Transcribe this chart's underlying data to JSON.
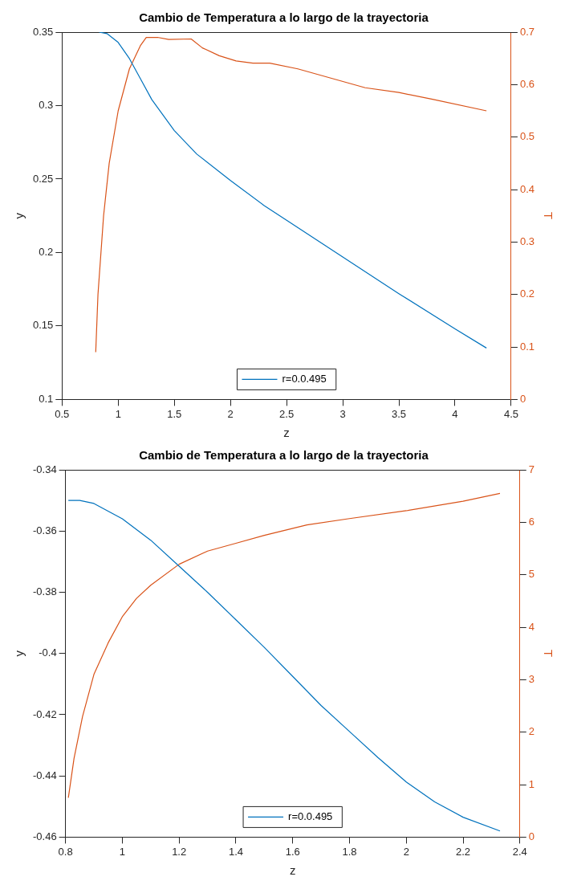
{
  "chart_data": [
    {
      "type": "line",
      "title": "Cambio de Temperatura a lo largo de la trayectoria",
      "xlabel": "z",
      "ylabel": "y",
      "y2label": "T",
      "xlim": [
        0.5,
        4.5
      ],
      "xticks": [
        0.5,
        1,
        1.5,
        2,
        2.5,
        3,
        3.5,
        4,
        4.5
      ],
      "ylim": [
        0.1,
        0.35
      ],
      "yticks": [
        0.1,
        0.15,
        0.2,
        0.25,
        0.3,
        0.35
      ],
      "y2lim": [
        0,
        0.7
      ],
      "y2ticks": [
        0,
        0.1,
        0.2,
        0.3,
        0.4,
        0.5,
        0.6,
        0.7
      ],
      "grid": false,
      "legend": "bottom",
      "series": [
        {
          "name": "r=0.0.495",
          "color": "#0072bd",
          "x": [
            0.83,
            0.9,
            1.0,
            1.1,
            1.2,
            1.3,
            1.5,
            1.7,
            2.0,
            2.3,
            2.5,
            3.0,
            3.5,
            4.0,
            4.28
          ],
          "values": [
            0.35,
            0.349,
            0.343,
            0.332,
            0.318,
            0.304,
            0.283,
            0.267,
            0.249,
            0.232,
            0.222,
            0.197,
            0.172,
            0.148,
            0.135
          ]
        },
        {
          "color": "#d95319",
          "axis": "y2",
          "x": [
            0.8,
            0.82,
            0.87,
            0.92,
            1.0,
            1.1,
            1.2,
            1.25,
            1.35,
            1.45,
            1.65,
            1.75,
            1.9,
            2.05,
            2.2,
            2.35,
            2.6,
            2.9,
            3.2,
            3.5,
            3.8,
            4.28
          ],
          "values": [
            0.09,
            0.2,
            0.35,
            0.45,
            0.55,
            0.63,
            0.675,
            0.69,
            0.69,
            0.686,
            0.687,
            0.67,
            0.655,
            0.645,
            0.641,
            0.641,
            0.63,
            0.612,
            0.594,
            0.585,
            0.572,
            0.55
          ]
        }
      ]
    },
    {
      "type": "line",
      "title": "Cambio de Temperatura a lo largo de la trayectoria",
      "xlabel": "z",
      "ylabel": "y",
      "y2label": "T",
      "xlim": [
        0.8,
        2.4
      ],
      "xticks": [
        0.8,
        1,
        1.2,
        1.4,
        1.6,
        1.8,
        2,
        2.2,
        2.4
      ],
      "ylim": [
        -0.46,
        -0.34
      ],
      "yticks": [
        -0.46,
        -0.44,
        -0.42,
        -0.4,
        -0.38,
        -0.36,
        -0.34
      ],
      "y2lim": [
        0,
        7
      ],
      "y2ticks": [
        0,
        1,
        2,
        3,
        4,
        5,
        6,
        7
      ],
      "grid": false,
      "legend": "bottom",
      "series": [
        {
          "name": "r=0.0.495",
          "color": "#0072bd",
          "x": [
            0.81,
            0.85,
            0.9,
            1.0,
            1.1,
            1.2,
            1.3,
            1.4,
            1.5,
            1.6,
            1.7,
            1.8,
            1.9,
            2.0,
            2.1,
            2.2,
            2.33
          ],
          "values": [
            -0.35,
            -0.35,
            -0.351,
            -0.356,
            -0.363,
            -0.3715,
            -0.38,
            -0.389,
            -0.398,
            -0.4075,
            -0.417,
            -0.4255,
            -0.434,
            -0.442,
            -0.4485,
            -0.4535,
            -0.458
          ]
        },
        {
          "color": "#d95319",
          "axis": "y2",
          "x": [
            0.81,
            0.83,
            0.86,
            0.9,
            0.95,
            1.0,
            1.05,
            1.1,
            1.2,
            1.3,
            1.4,
            1.5,
            1.65,
            1.8,
            2.0,
            2.2,
            2.33
          ],
          "values": [
            0.75,
            1.5,
            2.3,
            3.1,
            3.7,
            4.2,
            4.55,
            4.8,
            5.2,
            5.45,
            5.6,
            5.75,
            5.95,
            6.07,
            6.22,
            6.4,
            6.55
          ]
        }
      ]
    }
  ]
}
